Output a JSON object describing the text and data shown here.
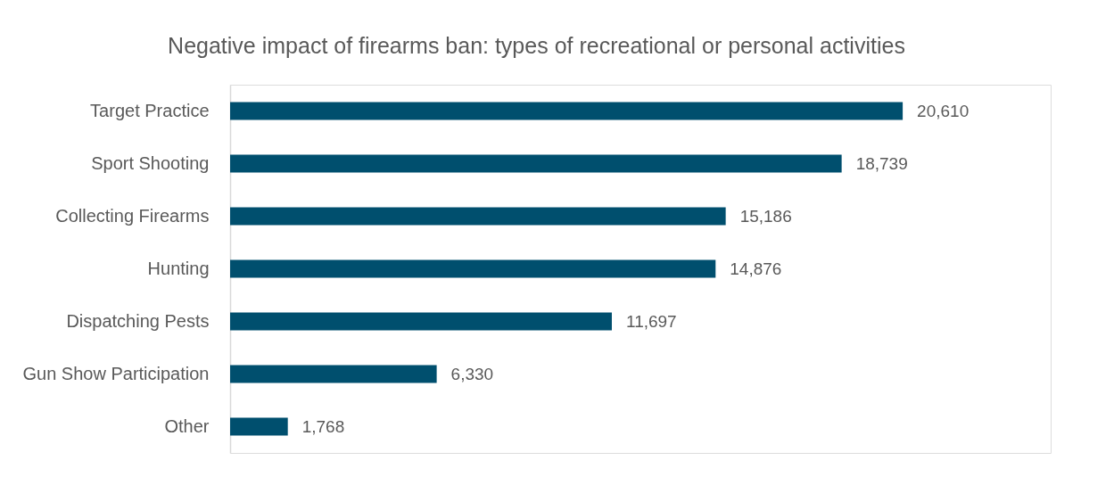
{
  "chart_data": {
    "type": "bar",
    "orientation": "horizontal",
    "title": "Negative impact of firearms ban: types of recreational or personal activities",
    "categories": [
      "Target Practice",
      "Sport Shooting",
      "Collecting Firearms",
      "Hunting",
      "Dispatching Pests",
      "Gun Show Participation",
      "Other"
    ],
    "values": [
      20610,
      18739,
      15186,
      14876,
      11697,
      6330,
      1768
    ],
    "value_labels": [
      "20,610",
      "18,739",
      "15,186",
      "14,876",
      "11,697",
      "6,330",
      "1,768"
    ],
    "color": "#004f6e",
    "grid": false
  }
}
